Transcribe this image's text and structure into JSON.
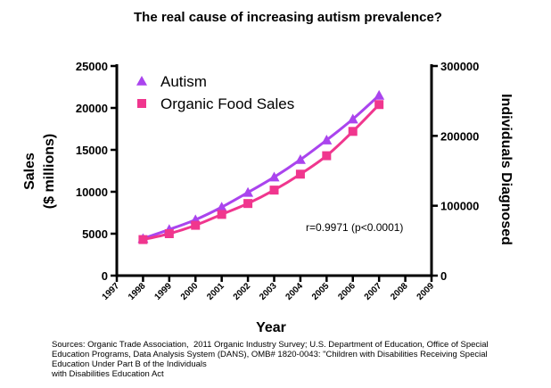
{
  "chart_data": {
    "type": "line",
    "title": "The real cause of increasing autism prevalence?",
    "xlabel": "Year",
    "ylabel_lines": [
      "Sales",
      "($ millions)"
    ],
    "y2label": "Individuals Diagnosed",
    "xlim": [
      1997,
      2009
    ],
    "x_ticks": [
      1997,
      1998,
      1999,
      2000,
      2001,
      2002,
      2003,
      2004,
      2005,
      2006,
      2007,
      2008,
      2009
    ],
    "ylim": [
      0,
      25000
    ],
    "y_ticks": [
      0,
      5000,
      10000,
      15000,
      20000,
      25000
    ],
    "y2lim": [
      0,
      300000
    ],
    "y2_ticks": [
      0,
      100000,
      200000,
      300000
    ],
    "series": [
      {
        "name": "Autism",
        "axis": "right",
        "marker": "triangle",
        "color": "#aa44ee",
        "x": [
          1998,
          1999,
          2000,
          2001,
          2002,
          2003,
          2004,
          2005,
          2006,
          2007
        ],
        "values": [
          53000,
          66000,
          80000,
          98000,
          119000,
          141000,
          166000,
          194000,
          224000,
          258000
        ]
      },
      {
        "name": "Organic Food Sales",
        "axis": "left",
        "marker": "square",
        "color": "#f0368e",
        "x": [
          1998,
          1999,
          2000,
          2001,
          2002,
          2003,
          2004,
          2005,
          2006,
          2007
        ],
        "values": [
          4300,
          5000,
          6000,
          7300,
          8600,
          10200,
          12100,
          14300,
          17200,
          20400
        ]
      }
    ],
    "annotation": "r=0.9971 (p<0.0001)",
    "legend_position": "top-left"
  },
  "sources": [
    "Sources: Organic Trade Association,  2011 Organic Industry Survey; U.S. Department of Education, Office of Special",
    "Education Programs, Data Analysis System (DANS), OMB# 1820-0043: \"Children with Disabilities Receiving Special",
    "Education Under Part B of the Individuals",
    "with Disabilities Education Act"
  ]
}
